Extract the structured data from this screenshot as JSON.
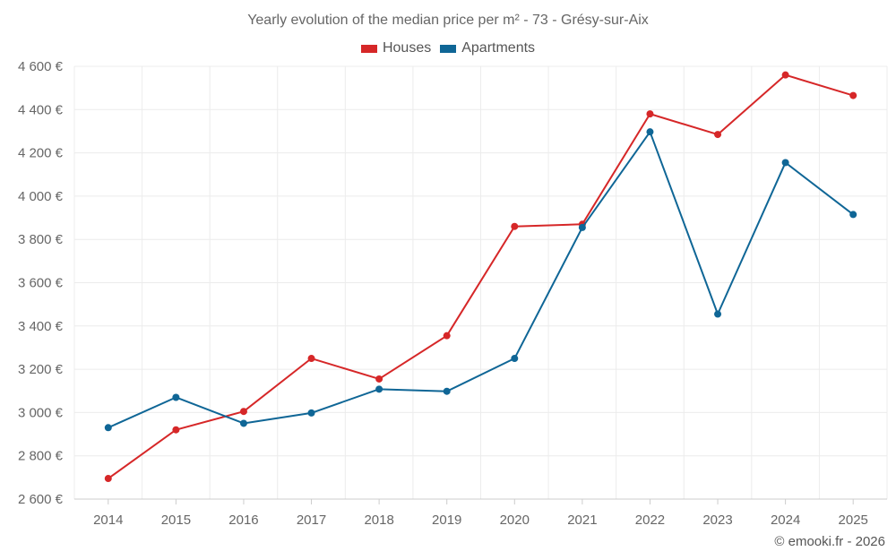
{
  "chart_data": {
    "type": "line",
    "title": "Yearly evolution of the median price per m² - 73 - Grésy-sur-Aix",
    "xlabel": "",
    "ylabel": "",
    "categories": [
      "2014",
      "2015",
      "2016",
      "2017",
      "2018",
      "2019",
      "2020",
      "2021",
      "2022",
      "2023",
      "2024",
      "2025"
    ],
    "ylim": [
      2600,
      4600
    ],
    "yticks": [
      2600,
      2800,
      3000,
      3200,
      3400,
      3600,
      3800,
      4000,
      4200,
      4400,
      4600
    ],
    "ytick_labels": [
      "2 600 €",
      "2 800 €",
      "3 000 €",
      "3 200 €",
      "3 400 €",
      "3 600 €",
      "3 800 €",
      "4 000 €",
      "4 200 €",
      "4 400 €",
      "4 600 €"
    ],
    "grid": true,
    "legend_position": "top-center",
    "series": [
      {
        "name": "Houses",
        "color": "#d62728",
        "values": [
          2695,
          2920,
          3005,
          3250,
          3155,
          3355,
          3860,
          3870,
          4380,
          4285,
          4560,
          4465
        ]
      },
      {
        "name": "Apartments",
        "color": "#0f6696",
        "values": [
          2930,
          3070,
          2950,
          2998,
          3108,
          3098,
          3250,
          3855,
          4297,
          3455,
          4155,
          3915
        ]
      }
    ]
  },
  "credit": "© emooki.fr - 2026"
}
